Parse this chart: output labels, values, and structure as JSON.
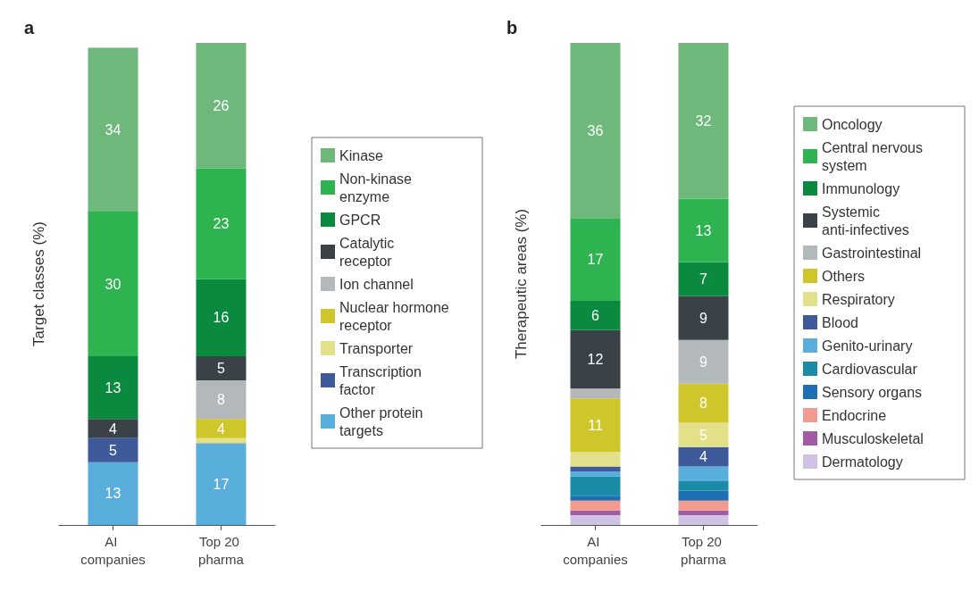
{
  "chart_data": [
    {
      "type": "bar",
      "title": "a",
      "ylabel": "Target classes (%)",
      "categories": [
        "AI companies",
        "Top 20 pharma"
      ],
      "stacked": true,
      "tick_labels": "x",
      "legend": "right",
      "grid": false,
      "series": [
        {
          "name": "Other protein targets",
          "color": "#5aaedc",
          "values": [
            13,
            17
          ],
          "value_labels": [
            "13",
            "17"
          ]
        },
        {
          "name": "Transcription factor",
          "color": "#3f5a9a",
          "values": [
            5,
            0
          ],
          "value_labels": [
            "5",
            null
          ]
        },
        {
          "name": "Transporter",
          "color": "#e3e08a",
          "values": [
            0,
            1
          ],
          "value_labels": [
            null,
            null
          ]
        },
        {
          "name": "Nuclear hormone receptor",
          "color": "#cfc62c",
          "values": [
            0,
            4
          ],
          "value_labels": [
            null,
            "4"
          ]
        },
        {
          "name": "Ion channel",
          "color": "#b3b8bb",
          "values": [
            0,
            8
          ],
          "value_labels": [
            null,
            "8"
          ]
        },
        {
          "name": "Catalytic receptor",
          "color": "#3a4248",
          "values": [
            4,
            5
          ],
          "value_labels": [
            "4",
            "5"
          ]
        },
        {
          "name": "GPCR",
          "color": "#0a8a3e",
          "values": [
            13,
            16
          ],
          "value_labels": [
            "13",
            "16"
          ]
        },
        {
          "name": "Non-kinase enzyme",
          "color": "#2db350",
          "values": [
            30,
            23
          ],
          "value_labels": [
            "30",
            "23"
          ]
        },
        {
          "name": "Kinase",
          "color": "#6db87a",
          "values": [
            34,
            26
          ],
          "value_labels": [
            "34",
            "26"
          ]
        }
      ]
    },
    {
      "type": "bar",
      "title": "b",
      "ylabel": "Therapeutic areas (%)",
      "categories": [
        "AI companies",
        "Top 20 pharma"
      ],
      "stacked": true,
      "tick_labels": "x",
      "legend": "right",
      "grid": false,
      "series": [
        {
          "name": "Dermatology",
          "color": "#cfc3e3",
          "values": [
            2,
            2
          ],
          "value_labels": [
            null,
            null
          ]
        },
        {
          "name": "Musculoskeletal",
          "color": "#a25aa5",
          "values": [
            1,
            1
          ],
          "value_labels": [
            null,
            null
          ]
        },
        {
          "name": "Endocrine",
          "color": "#f29a90",
          "values": [
            2,
            2
          ],
          "value_labels": [
            null,
            null
          ]
        },
        {
          "name": "Sensory organs",
          "color": "#1f6fb5",
          "values": [
            1,
            2
          ],
          "value_labels": [
            null,
            null
          ]
        },
        {
          "name": "Cardiovascular",
          "color": "#1a8ca8",
          "values": [
            4,
            2
          ],
          "value_labels": [
            null,
            null
          ]
        },
        {
          "name": "Genito-urinary",
          "color": "#5aaedc",
          "values": [
            1,
            3
          ],
          "value_labels": [
            null,
            null
          ]
        },
        {
          "name": "Blood",
          "color": "#3f5a9a",
          "values": [
            1,
            4
          ],
          "value_labels": [
            null,
            "4"
          ]
        },
        {
          "name": "Respiratory",
          "color": "#e3e08a",
          "values": [
            3,
            5
          ],
          "value_labels": [
            null,
            "5"
          ]
        },
        {
          "name": "Others",
          "color": "#cfc62c",
          "values": [
            11,
            8
          ],
          "value_labels": [
            "11",
            "8"
          ]
        },
        {
          "name": "Gastrointestinal",
          "color": "#b3b8bb",
          "values": [
            2,
            9
          ],
          "value_labels": [
            null,
            "9"
          ]
        },
        {
          "name": "Systemic anti-infectives",
          "color": "#3a4248",
          "values": [
            12,
            9
          ],
          "value_labels": [
            "12",
            "9"
          ]
        },
        {
          "name": "Immunology",
          "color": "#0a8a3e",
          "values": [
            6,
            7
          ],
          "value_labels": [
            "6",
            "7"
          ]
        },
        {
          "name": "Central nervous system",
          "color": "#2db350",
          "values": [
            17,
            13
          ],
          "value_labels": [
            "17",
            "13"
          ]
        },
        {
          "name": "Oncology",
          "color": "#6db87a",
          "values": [
            36,
            32
          ],
          "value_labels": [
            "36",
            "32"
          ]
        }
      ]
    }
  ]
}
